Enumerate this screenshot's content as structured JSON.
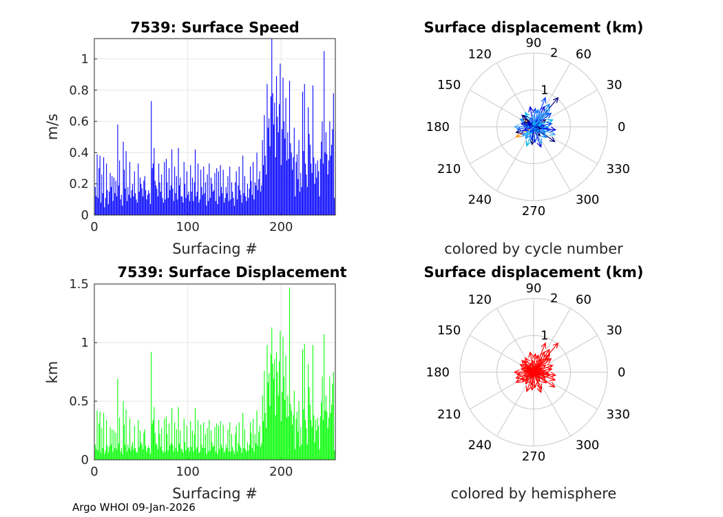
{
  "footer": "Argo WHOI 09-Jan-2026",
  "chart_data": [
    {
      "type": "bar",
      "id": "speed",
      "title": "7539: Surface Speed",
      "xlabel": "Surfacing #",
      "ylabel": "m/s",
      "xlim": [
        0,
        258
      ],
      "ylim": [
        0,
        1.13
      ],
      "xticks": [
        "0",
        "100",
        "200"
      ],
      "yticks": [
        "0",
        "0.2",
        "0.4",
        "0.6",
        "0.8",
        "1"
      ],
      "color": "#0000ff",
      "values": [
        0.18,
        0.12,
        0.39,
        0.11,
        0.3,
        0.38,
        0.08,
        0.26,
        0.14,
        0.37,
        0.05,
        0.11,
        0.33,
        0.16,
        0.07,
        0.15,
        0.27,
        0.18,
        0.25,
        0.09,
        0.24,
        0.14,
        0.22,
        0.12,
        0.58,
        0.19,
        0.35,
        0.1,
        0.13,
        0.06,
        0.47,
        0.29,
        0.17,
        0.41,
        0.09,
        0.18,
        0.13,
        0.34,
        0.11,
        0.16,
        0.2,
        0.12,
        0.28,
        0.14,
        0.1,
        0.08,
        0.33,
        0.15,
        0.24,
        0.2,
        0.17,
        0.12,
        0.22,
        0.25,
        0.16,
        0.1,
        0.13,
        0.16,
        0.14,
        0.07,
        0.73,
        0.3,
        0.33,
        0.43,
        0.22,
        0.19,
        0.17,
        0.12,
        0.33,
        0.21,
        0.15,
        0.26,
        0.11,
        0.08,
        0.34,
        0.1,
        0.36,
        0.21,
        0.11,
        0.3,
        0.16,
        0.19,
        0.42,
        0.17,
        0.09,
        0.31,
        0.14,
        0.25,
        0.1,
        0.43,
        0.19,
        0.24,
        0.12,
        0.12,
        0.08,
        0.34,
        0.2,
        0.11,
        0.28,
        0.13,
        0.15,
        0.09,
        0.32,
        0.15,
        0.24,
        0.09,
        0.21,
        0.42,
        0.12,
        0.15,
        0.33,
        0.08,
        0.1,
        0.29,
        0.18,
        0.13,
        0.31,
        0.14,
        0.21,
        0.06,
        0.26,
        0.09,
        0.33,
        0.11,
        0.24,
        0.2,
        0.15,
        0.16,
        0.27,
        0.09,
        0.3,
        0.07,
        0.28,
        0.12,
        0.32,
        0.18,
        0.14,
        0.29,
        0.08,
        0.11,
        0.18,
        0.14,
        0.25,
        0.09,
        0.31,
        0.1,
        0.21,
        0.15,
        0.11,
        0.06,
        0.21,
        0.28,
        0.1,
        0.19,
        0.31,
        0.16,
        0.13,
        0.08,
        0.38,
        0.14,
        0.25,
        0.12,
        0.09,
        0.2,
        0.11,
        0.17,
        0.31,
        0.22,
        0.13,
        0.34,
        0.1,
        0.21,
        0.19,
        0.4,
        0.16,
        0.23,
        0.28,
        0.15,
        0.19,
        0.48,
        0.32,
        0.64,
        0.38,
        0.26,
        0.84,
        0.56,
        0.62,
        0.44,
        0.76,
        1.13,
        0.78,
        0.58,
        0.72,
        0.37,
        0.89,
        0.63,
        0.53,
        0.71,
        0.97,
        0.32,
        0.55,
        0.88,
        0.6,
        0.49,
        0.75,
        0.35,
        0.53,
        0.36,
        0.86,
        0.46,
        0.4,
        0.29,
        0.37,
        0.56,
        0.12,
        0.34,
        0.39,
        0.23,
        0.48,
        0.15,
        0.27,
        0.18,
        0.79,
        0.41,
        0.84,
        0.33,
        0.26,
        0.18,
        0.69,
        0.52,
        0.45,
        0.33,
        0.27,
        0.83,
        0.37,
        0.2,
        0.33,
        0.24,
        0.35,
        0.28,
        0.12,
        0.36,
        0.47,
        0.6,
        0.33,
        1.05,
        0.4,
        0.53,
        0.39,
        0.26,
        0.35,
        0.6,
        0.38,
        0.45,
        0.55,
        0.78,
        0.11,
        0.54
      ]
    },
    {
      "type": "bar",
      "id": "displacement",
      "title": "7539: Surface Displacement",
      "xlabel": "Surfacing #",
      "ylabel": "km",
      "xlim": [
        0,
        258
      ],
      "ylim": [
        0,
        1.5
      ],
      "xticks": [
        "0",
        "100",
        "200"
      ],
      "yticks": [
        "0",
        "0.5",
        "1",
        "1.5"
      ],
      "color": "#00ff00",
      "values": [
        0.13,
        0.09,
        0.42,
        0.08,
        0.31,
        0.41,
        0.06,
        0.27,
        0.1,
        0.4,
        0.05,
        0.08,
        0.34,
        0.12,
        0.06,
        0.11,
        0.28,
        0.13,
        0.26,
        0.07,
        0.25,
        0.1,
        0.23,
        0.09,
        0.69,
        0.14,
        0.36,
        0.07,
        0.1,
        0.05,
        0.5,
        0.3,
        0.13,
        0.43,
        0.07,
        0.13,
        0.1,
        0.35,
        0.08,
        0.12,
        0.15,
        0.09,
        0.29,
        0.1,
        0.07,
        0.06,
        0.34,
        0.11,
        0.25,
        0.15,
        0.13,
        0.09,
        0.23,
        0.26,
        0.12,
        0.07,
        0.1,
        0.12,
        0.1,
        0.05,
        0.92,
        0.31,
        0.34,
        0.45,
        0.23,
        0.14,
        0.13,
        0.09,
        0.34,
        0.22,
        0.11,
        0.27,
        0.08,
        0.06,
        0.35,
        0.07,
        0.37,
        0.22,
        0.08,
        0.31,
        0.12,
        0.14,
        0.44,
        0.13,
        0.07,
        0.32,
        0.1,
        0.26,
        0.07,
        0.45,
        0.14,
        0.25,
        0.09,
        0.09,
        0.06,
        0.35,
        0.15,
        0.08,
        0.29,
        0.1,
        0.11,
        0.07,
        0.33,
        0.11,
        0.25,
        0.07,
        0.22,
        0.44,
        0.09,
        0.11,
        0.34,
        0.06,
        0.07,
        0.3,
        0.13,
        0.1,
        0.32,
        0.1,
        0.22,
        0.05,
        0.27,
        0.07,
        0.34,
        0.08,
        0.25,
        0.15,
        0.11,
        0.12,
        0.28,
        0.07,
        0.31,
        0.05,
        0.29,
        0.09,
        0.33,
        0.13,
        0.1,
        0.3,
        0.06,
        0.08,
        0.13,
        0.1,
        0.26,
        0.07,
        0.32,
        0.07,
        0.22,
        0.11,
        0.08,
        0.05,
        0.22,
        0.29,
        0.07,
        0.14,
        0.32,
        0.12,
        0.1,
        0.06,
        0.4,
        0.1,
        0.26,
        0.09,
        0.07,
        0.15,
        0.08,
        0.13,
        0.32,
        0.23,
        0.1,
        0.35,
        0.07,
        0.22,
        0.14,
        0.42,
        0.12,
        0.24,
        0.29,
        0.11,
        0.14,
        0.55,
        0.33,
        0.76,
        0.4,
        0.27,
        0.98,
        0.66,
        0.74,
        0.46,
        0.9,
        1.13,
        0.82,
        0.69,
        0.86,
        0.38,
        0.92,
        0.75,
        0.55,
        0.84,
        1.1,
        0.33,
        0.58,
        1.05,
        0.71,
        0.51,
        0.89,
        0.36,
        0.55,
        0.37,
        1.47,
        0.48,
        0.42,
        0.3,
        0.38,
        0.59,
        0.09,
        0.35,
        0.41,
        0.24,
        0.5,
        0.11,
        0.28,
        0.13,
        0.94,
        0.43,
        0.99,
        0.34,
        0.27,
        0.13,
        0.82,
        0.62,
        0.47,
        0.34,
        0.28,
        0.98,
        0.38,
        0.15,
        0.34,
        0.25,
        0.36,
        0.29,
        0.09,
        0.37,
        0.49,
        0.71,
        0.34,
        1.07,
        0.42,
        0.55,
        0.41,
        0.27,
        0.36,
        0.71,
        0.4,
        0.47,
        0.65,
        0.75,
        0.08,
        0.64
      ]
    },
    {
      "type": "polar",
      "id": "polar-cycle",
      "title": "Surface displacement (km)",
      "subtitle": "colored by cycle number",
      "rmax": 2,
      "radial_ticks": [
        "1",
        "2"
      ],
      "angle_ticks": [
        "0",
        "30",
        "60",
        "90",
        "120",
        "150",
        "180",
        "210",
        "240",
        "270",
        "300",
        "330"
      ],
      "palette": [
        "#00007f",
        "#0000e0",
        "#0040ff",
        "#0080ff",
        "#00b8f0",
        "#3fa9f5",
        "#ff8c00"
      ],
      "arrows": [
        [
          0,
          1.03,
          50,
          0
        ],
        [
          1,
          0.62,
          62,
          1
        ],
        [
          2,
          0.85,
          68,
          2
        ],
        [
          3,
          0.55,
          44,
          3
        ],
        [
          4,
          0.3,
          5,
          1
        ],
        [
          5,
          0.4,
          -3,
          4
        ],
        [
          6,
          0.45,
          -12,
          2
        ],
        [
          7,
          0.62,
          -20,
          5
        ],
        [
          8,
          0.7,
          -35,
          0
        ],
        [
          9,
          0.35,
          -25,
          3
        ],
        [
          10,
          0.58,
          -70,
          1
        ],
        [
          11,
          0.42,
          -85,
          2
        ],
        [
          12,
          0.48,
          -95,
          0
        ],
        [
          13,
          0.55,
          -110,
          4
        ],
        [
          14,
          0.38,
          -125,
          3
        ],
        [
          15,
          0.4,
          -150,
          1
        ],
        [
          16,
          0.55,
          -150,
          6
        ],
        [
          17,
          0.5,
          -162,
          0
        ],
        [
          18,
          0.45,
          -172,
          2
        ],
        [
          19,
          0.52,
          180,
          5
        ],
        [
          20,
          0.35,
          165,
          1
        ],
        [
          21,
          0.42,
          150,
          3
        ],
        [
          22,
          0.32,
          140,
          6
        ],
        [
          23,
          0.4,
          130,
          0
        ],
        [
          24,
          0.45,
          120,
          4
        ],
        [
          25,
          0.55,
          100,
          1
        ],
        [
          26,
          0.5,
          85,
          2
        ],
        [
          27,
          0.48,
          75,
          3
        ],
        [
          28,
          0.42,
          60,
          5
        ],
        [
          29,
          0.38,
          30,
          0
        ],
        [
          30,
          0.55,
          20,
          4
        ],
        [
          31,
          0.5,
          10,
          2
        ],
        [
          32,
          0.6,
          -8,
          1
        ],
        [
          33,
          0.45,
          -40,
          3
        ],
        [
          34,
          0.3,
          -55,
          0
        ],
        [
          35,
          0.5,
          -65,
          5
        ],
        [
          36,
          0.35,
          -100,
          2
        ],
        [
          37,
          0.3,
          -135,
          4
        ],
        [
          38,
          0.28,
          -160,
          1
        ],
        [
          39,
          0.25,
          170,
          3
        ],
        [
          40,
          0.3,
          155,
          0
        ],
        [
          41,
          0.26,
          110,
          2
        ],
        [
          42,
          0.32,
          95,
          5
        ],
        [
          43,
          0.22,
          55,
          1
        ],
        [
          44,
          0.25,
          25,
          4
        ],
        [
          45,
          0.2,
          -15,
          0
        ],
        [
          46,
          0.22,
          -45,
          3
        ],
        [
          47,
          0.18,
          -120,
          2
        ],
        [
          48,
          0.2,
          145,
          1
        ],
        [
          49,
          0.15,
          80,
          4
        ],
        [
          50,
          0.75,
          55,
          3
        ],
        [
          51,
          0.65,
          48,
          5
        ],
        [
          52,
          0.6,
          38,
          2
        ],
        [
          53,
          0.45,
          135,
          0
        ],
        [
          54,
          0.4,
          -140,
          5
        ]
      ]
    },
    {
      "type": "polar",
      "id": "polar-hemisphere",
      "title": "Surface displacement (km)",
      "subtitle": "colored by hemisphere",
      "rmax": 2,
      "radial_ticks": [
        "1",
        "2"
      ],
      "angle_ticks": [
        "0",
        "30",
        "60",
        "90",
        "120",
        "150",
        "180",
        "210",
        "240",
        "270",
        "300",
        "330"
      ],
      "color": "#ff0000",
      "arrows": [
        [
          0,
          1.03,
          50
        ],
        [
          1,
          0.62,
          62
        ],
        [
          2,
          0.85,
          68
        ],
        [
          3,
          0.55,
          44
        ],
        [
          4,
          0.3,
          5
        ],
        [
          5,
          0.4,
          -3
        ],
        [
          6,
          0.45,
          -12
        ],
        [
          7,
          0.62,
          -20
        ],
        [
          8,
          0.7,
          -35
        ],
        [
          9,
          0.35,
          -25
        ],
        [
          10,
          0.58,
          -70
        ],
        [
          11,
          0.42,
          -85
        ],
        [
          12,
          0.48,
          -95
        ],
        [
          13,
          0.55,
          -110
        ],
        [
          14,
          0.38,
          -125
        ],
        [
          15,
          0.4,
          -150
        ],
        [
          16,
          0.55,
          -150
        ],
        [
          17,
          0.5,
          -162
        ],
        [
          18,
          0.45,
          -172
        ],
        [
          19,
          0.52,
          180
        ],
        [
          20,
          0.35,
          165
        ],
        [
          21,
          0.42,
          150
        ],
        [
          22,
          0.32,
          140
        ],
        [
          23,
          0.4,
          130
        ],
        [
          24,
          0.45,
          120
        ],
        [
          25,
          0.55,
          100
        ],
        [
          26,
          0.5,
          85
        ],
        [
          27,
          0.48,
          75
        ],
        [
          28,
          0.42,
          60
        ],
        [
          29,
          0.38,
          30
        ],
        [
          30,
          0.55,
          20
        ],
        [
          31,
          0.5,
          10
        ],
        [
          32,
          0.6,
          -8
        ],
        [
          33,
          0.45,
          -40
        ],
        [
          34,
          0.3,
          -55
        ],
        [
          35,
          0.5,
          -65
        ],
        [
          36,
          0.35,
          -100
        ],
        [
          37,
          0.3,
          -135
        ],
        [
          38,
          0.28,
          -160
        ],
        [
          39,
          0.25,
          170
        ],
        [
          40,
          0.3,
          155
        ],
        [
          41,
          0.26,
          110
        ],
        [
          42,
          0.32,
          95
        ],
        [
          43,
          0.22,
          55
        ],
        [
          44,
          0.25,
          25
        ],
        [
          45,
          0.2,
          -15
        ],
        [
          46,
          0.22,
          -45
        ],
        [
          47,
          0.18,
          -120
        ],
        [
          48,
          0.2,
          145
        ],
        [
          49,
          0.15,
          80
        ],
        [
          50,
          0.75,
          55
        ],
        [
          51,
          0.65,
          48
        ],
        [
          52,
          0.6,
          38
        ],
        [
          53,
          0.45,
          135
        ],
        [
          54,
          0.4,
          -140
        ]
      ]
    }
  ]
}
